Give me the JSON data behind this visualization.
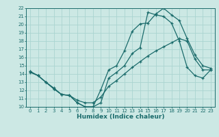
{
  "xlabel": "Humidex (Indice chaleur)",
  "bg_color": "#cce8e4",
  "line_color": "#1a6b6b",
  "grid_color": "#aad4d0",
  "xlim": [
    -0.5,
    23.5
  ],
  "ylim": [
    10,
    22
  ],
  "xticks": [
    0,
    1,
    2,
    3,
    4,
    5,
    6,
    7,
    8,
    9,
    10,
    11,
    12,
    13,
    14,
    15,
    16,
    17,
    18,
    19,
    20,
    21,
    22,
    23
  ],
  "yticks": [
    10,
    11,
    12,
    13,
    14,
    15,
    16,
    17,
    18,
    19,
    20,
    21,
    22
  ],
  "line1_x": [
    0,
    1,
    2,
    3,
    4,
    5,
    6,
    7,
    8,
    9,
    10,
    11,
    12,
    13,
    14,
    15,
    16,
    17,
    18,
    19,
    20,
    21,
    22,
    23
  ],
  "line1_y": [
    14.3,
    13.8,
    13.0,
    12.2,
    11.5,
    11.4,
    10.5,
    10.0,
    10.0,
    12.1,
    14.5,
    15.0,
    16.8,
    19.2,
    20.1,
    20.2,
    21.3,
    22.0,
    21.2,
    20.5,
    18.3,
    16.3,
    15.0,
    14.7
  ],
  "line2_x": [
    0,
    1,
    2,
    3,
    4,
    5,
    6,
    7,
    8,
    9,
    10,
    11,
    12,
    13,
    14,
    15,
    16,
    17,
    18,
    19,
    20,
    21,
    22,
    23
  ],
  "line2_y": [
    14.3,
    13.8,
    13.0,
    12.3,
    11.5,
    11.4,
    10.5,
    10.0,
    10.0,
    10.5,
    13.5,
    14.2,
    15.0,
    16.5,
    17.2,
    21.5,
    21.2,
    21.0,
    20.2,
    18.0,
    14.8,
    13.8,
    13.5,
    14.5
  ],
  "line3_x": [
    0,
    1,
    2,
    3,
    4,
    5,
    6,
    7,
    8,
    9,
    10,
    11,
    12,
    13,
    14,
    15,
    16,
    17,
    18,
    19,
    20,
    21,
    22,
    23
  ],
  "line3_y": [
    14.2,
    13.8,
    13.0,
    12.2,
    11.5,
    11.4,
    10.8,
    10.5,
    10.5,
    11.2,
    12.5,
    13.2,
    14.0,
    14.8,
    15.5,
    16.2,
    16.8,
    17.3,
    17.8,
    18.3,
    18.0,
    15.8,
    14.5,
    14.5
  ],
  "xlabel_fontsize": 6.5,
  "tick_fontsize": 5.0
}
